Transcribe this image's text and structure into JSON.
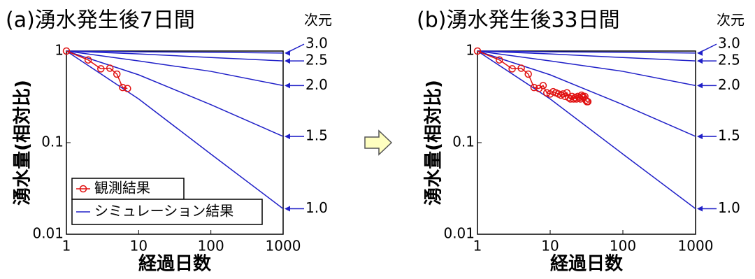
{
  "chart_data": [
    {
      "type": "line",
      "title": "(a)湧水発生後7日間",
      "xlabel": "経過日数",
      "ylabel": "湧水量(相対比)",
      "xscale": "log",
      "yscale": "log",
      "xlim": [
        1,
        1000
      ],
      "ylim": [
        0.01,
        1
      ],
      "xticks": [
        1,
        10,
        100,
        1000
      ],
      "yticks": [
        0.01,
        0.1,
        1
      ],
      "legend": "lower left",
      "series": [
        {
          "name": "観測結果",
          "color": "#e01010",
          "marker": "circle",
          "x": [
            1,
            2,
            3,
            4,
            5,
            6,
            7
          ],
          "values": [
            1,
            0.8,
            0.64,
            0.65,
            0.56,
            0.4,
            0.39
          ]
        }
      ],
      "simulation_legend": "シミュレーション結果",
      "lines_title": "次元",
      "lines_color": "#2020c8",
      "lines_x": [
        1,
        10,
        100,
        1000
      ],
      "lines": [
        {
          "label": "3.0",
          "values": [
            1,
            0.98,
            0.97,
            0.95
          ]
        },
        {
          "label": "2.5",
          "values": [
            1,
            0.93,
            0.85,
            0.78
          ]
        },
        {
          "label": "2.0",
          "values": [
            1,
            0.78,
            0.6,
            0.42
          ]
        },
        {
          "label": "1.5",
          "values": [
            1,
            0.55,
            0.26,
            0.117
          ]
        },
        {
          "label": "1.0",
          "values": [
            1,
            0.3,
            0.075,
            0.019
          ]
        }
      ]
    },
    {
      "type": "line",
      "title": "(b)湧水発生後33日間",
      "xlabel": "経過日数",
      "ylabel": "湧水量(相対比)",
      "xscale": "log",
      "yscale": "log",
      "xlim": [
        1,
        1000
      ],
      "ylim": [
        0.01,
        1
      ],
      "xticks": [
        1,
        10,
        100,
        1000
      ],
      "yticks": [
        0.01,
        0.1,
        1
      ],
      "series": [
        {
          "color": "#e01010",
          "marker": "circle",
          "x": [
            1,
            2,
            3,
            4,
            5,
            6,
            7,
            8,
            9,
            10,
            11,
            12,
            13,
            14,
            15,
            16,
            17,
            18,
            19,
            20,
            21,
            22,
            23,
            24,
            25,
            26,
            27,
            28,
            29,
            30,
            31,
            32,
            33
          ],
          "values": [
            1,
            0.8,
            0.64,
            0.65,
            0.56,
            0.4,
            0.39,
            0.42,
            0.35,
            0.34,
            0.36,
            0.35,
            0.34,
            0.33,
            0.34,
            0.32,
            0.35,
            0.31,
            0.3,
            0.32,
            0.3,
            0.31,
            0.3,
            0.32,
            0.31,
            0.3,
            0.33,
            0.32,
            0.31,
            0.32,
            0.29,
            0.28,
            0.28
          ]
        }
      ],
      "lines_title": "次元",
      "lines_color": "#2020c8",
      "lines_x": [
        1,
        10,
        100,
        1000
      ],
      "lines": [
        {
          "label": "3.0",
          "values": [
            1,
            0.98,
            0.97,
            0.95
          ]
        },
        {
          "label": "2.5",
          "values": [
            1,
            0.93,
            0.85,
            0.78
          ]
        },
        {
          "label": "2.0",
          "values": [
            1,
            0.78,
            0.6,
            0.42
          ]
        },
        {
          "label": "1.5",
          "values": [
            1,
            0.55,
            0.26,
            0.117
          ]
        },
        {
          "label": "1.0",
          "values": [
            1,
            0.3,
            0.075,
            0.019
          ]
        }
      ]
    }
  ]
}
